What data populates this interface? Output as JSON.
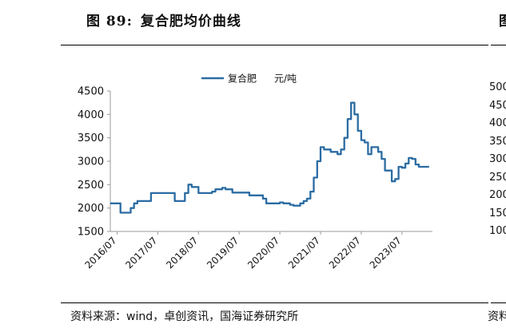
{
  "figure": {
    "number": "图 89:",
    "title": "复合肥均价曲线",
    "right_fragment": "图",
    "source": "资料来源：wind，卓创资讯，国海证券研究所",
    "right_source_fragment": "资料"
  },
  "chart_data": {
    "type": "line",
    "legend": "复合肥",
    "unit": "元/吨",
    "legend_position": "top-center",
    "color": "#2b6ca3",
    "ylim": [
      1500,
      4500
    ],
    "yticks": [
      1500,
      2000,
      2500,
      3000,
      3500,
      4000,
      4500
    ],
    "xticks": [
      "2016/07",
      "2017/07",
      "2018/07",
      "2019/07",
      "2020/07",
      "2021/07",
      "2022/07",
      "2023/07"
    ],
    "grid": false,
    "series": [
      {
        "name": "复合肥",
        "x": [
          "2016/05",
          "2016/07",
          "2016/08",
          "2016/10",
          "2016/11",
          "2016/12",
          "2017/01",
          "2017/04",
          "2017/05",
          "2017/10",
          "2017/12",
          "2018/02",
          "2018/03",
          "2018/04",
          "2018/05",
          "2018/07",
          "2018/09",
          "2018/11",
          "2018/12",
          "2019/02",
          "2019/03",
          "2019/05",
          "2019/09",
          "2019/10",
          "2019/12",
          "2020/02",
          "2020/03",
          "2020/05",
          "2020/07",
          "2020/08",
          "2020/10",
          "2020/11",
          "2020/12",
          "2021/01",
          "2021/02",
          "2021/03",
          "2021/04",
          "2021/05",
          "2021/06",
          "2021/07",
          "2021/08",
          "2021/10",
          "2021/12",
          "2022/01",
          "2022/02",
          "2022/03",
          "2022/04",
          "2022/05",
          "2022/06",
          "2022/07",
          "2022/08",
          "2022/09",
          "2022/10",
          "2022/11",
          "2022/12",
          "2023/01",
          "2023/02",
          "2023/04",
          "2023/05",
          "2023/06",
          "2023/07",
          "2023/08",
          "2023/09",
          "2023/10",
          "2023/11",
          "2023/12",
          "2024/01",
          "2024/02",
          "2024/03"
        ],
        "values": [
          2100,
          2100,
          1900,
          1900,
          2000,
          2100,
          2150,
          2150,
          2320,
          2320,
          2150,
          2150,
          2320,
          2500,
          2450,
          2320,
          2320,
          2350,
          2400,
          2430,
          2400,
          2330,
          2330,
          2270,
          2270,
          2200,
          2100,
          2100,
          2120,
          2100,
          2070,
          2050,
          2050,
          2100,
          2150,
          2200,
          2350,
          2650,
          3000,
          3300,
          3250,
          3200,
          3150,
          3250,
          3500,
          3900,
          4250,
          4000,
          3650,
          3450,
          3400,
          3150,
          3300,
          3300,
          3200,
          3050,
          2800,
          2570,
          2620,
          2880,
          2860,
          2950,
          3070,
          3050,
          2930,
          2880,
          2880,
          2880,
          2880
        ]
      }
    ]
  },
  "right_panel_ticks": [
    "500",
    "450",
    "400",
    "350",
    "300",
    "250",
    "200",
    "150",
    "100"
  ]
}
